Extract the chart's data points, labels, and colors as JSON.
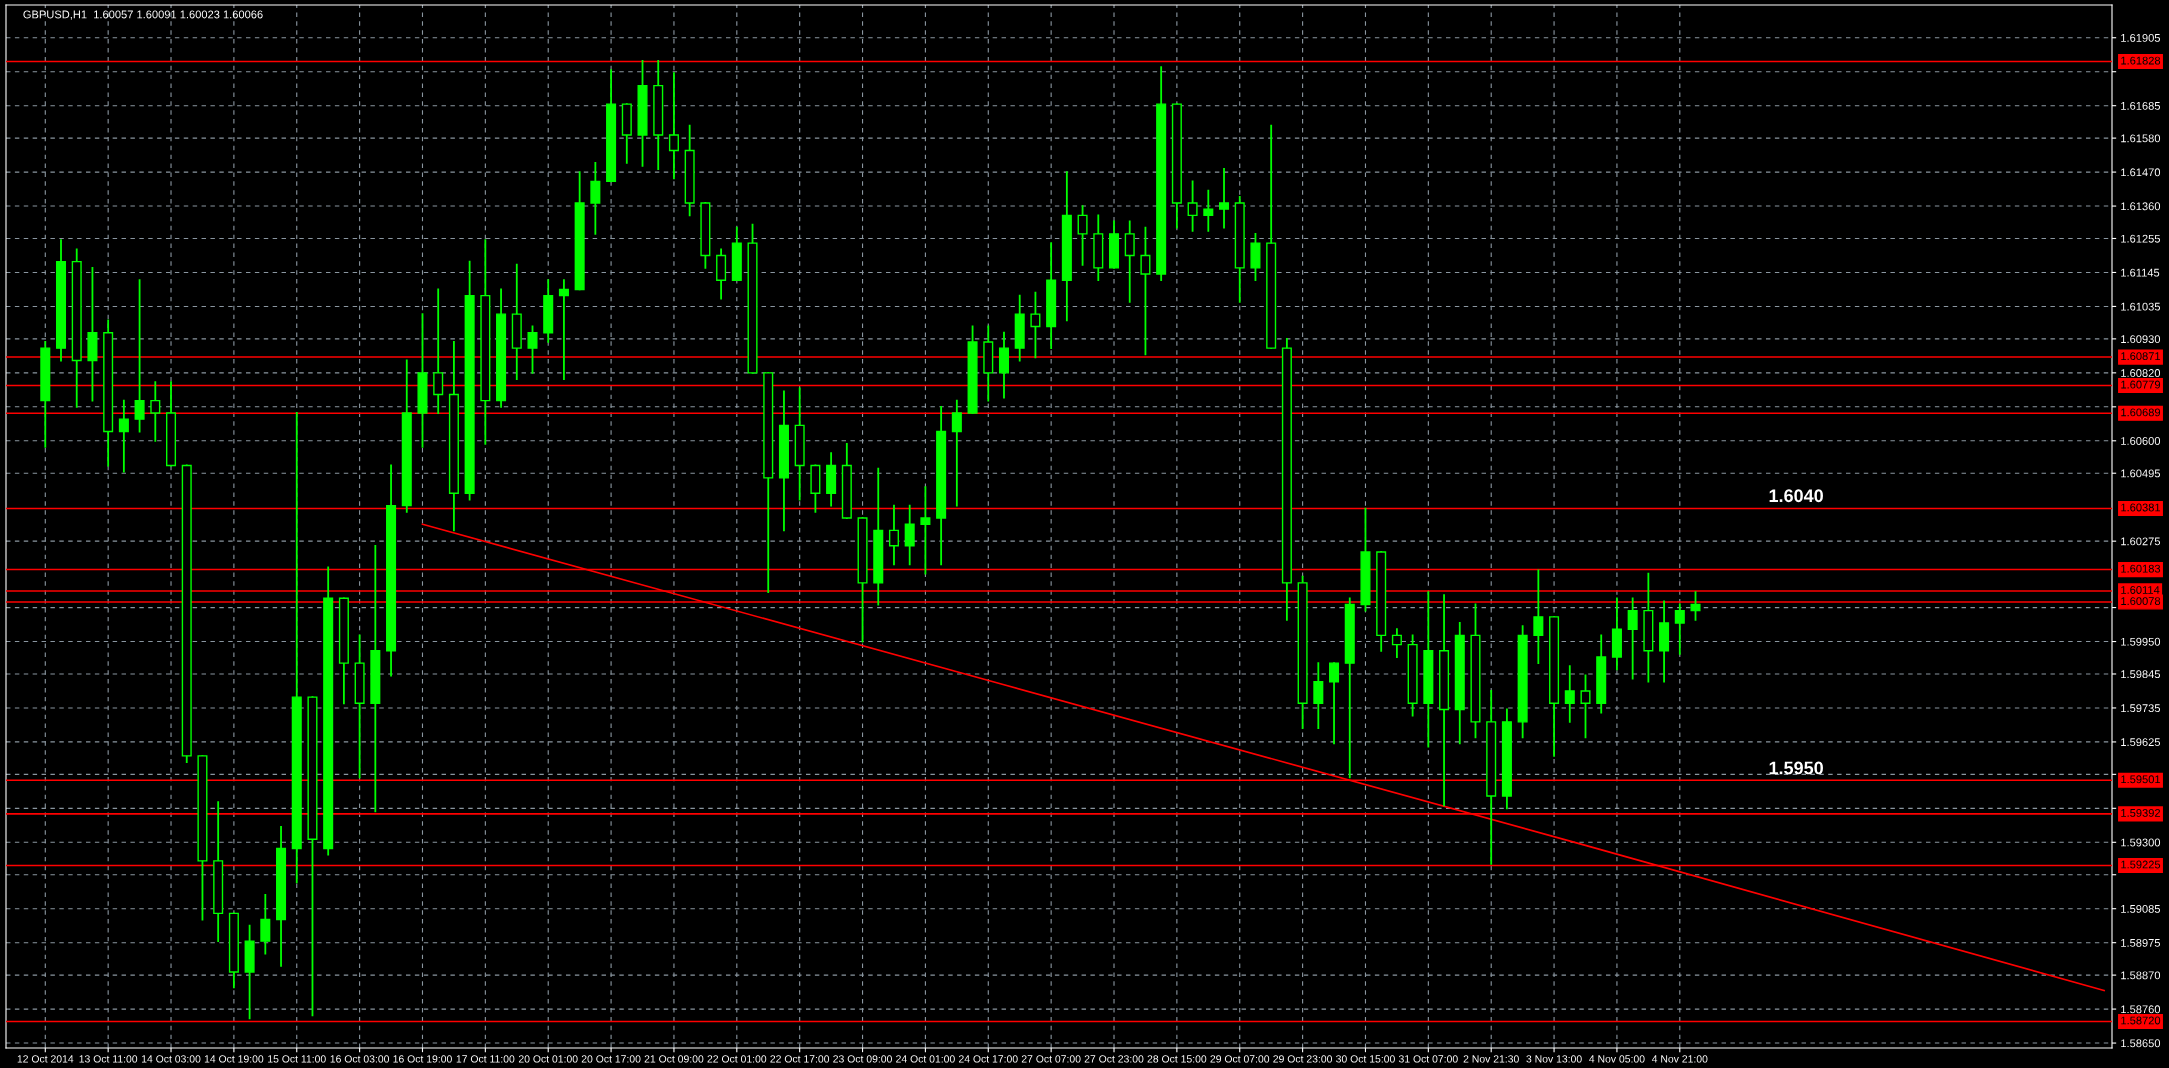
{
  "chart_data": {
    "type": "candlestick",
    "title": "GBPUSD,H1  1.60057 1.60091 1.60023 1.60066",
    "color": "#00ff00",
    "categories": [
      "12 Oct 2014",
      null,
      null,
      null,
      "13 Oct 11:00",
      null,
      null,
      null,
      "14 Oct 03:00",
      null,
      null,
      null,
      "14 Oct 19:00",
      null,
      null,
      null,
      "15 Oct 11:00",
      null,
      null,
      null,
      "16 Oct 03:00",
      null,
      null,
      null,
      "16 Oct 19:00",
      null,
      null,
      null,
      "17 Oct 11:00",
      null,
      null,
      null,
      "20 Oct 01:00",
      null,
      null,
      null,
      "20 Oct 17:00",
      null,
      null,
      null,
      "21 Oct 09:00",
      null,
      null,
      null,
      "22 Oct 01:00",
      null,
      null,
      null,
      "22 Oct 17:00",
      null,
      null,
      null,
      "23 Oct 09:00",
      null,
      null,
      null,
      "24 Oct 01:00",
      null,
      null,
      null,
      "24 Oct 17:00",
      null,
      null,
      null,
      "27 Oct 07:00",
      null,
      null,
      null,
      "27 Oct 23:00",
      null,
      null,
      null,
      "28 Oct 15:00",
      null,
      null,
      null,
      "29 Oct 07:00",
      null,
      null,
      null,
      "29 Oct 23:00",
      null,
      null,
      null,
      "30 Oct 15:00",
      null,
      null,
      null,
      "31 Oct 07:00",
      null,
      null,
      null,
      "2 Nov 21:30",
      null,
      null,
      null,
      "3 Nov 13:00",
      null,
      null,
      null,
      "4 Nov 05:00",
      null,
      null,
      null,
      "4 Nov 21:00",
      null,
      null,
      null,
      null,
      null,
      null,
      null,
      null,
      null,
      null,
      null,
      null,
      null,
      null,
      null,
      null,
      null,
      null,
      null,
      null,
      null,
      null,
      null,
      null,
      null,
      null,
      null
    ],
    "ohlc": [
      [
        1.6073,
        1.6092,
        1.6058,
        1.609
      ],
      [
        1.609,
        1.6125,
        1.6086,
        1.6118
      ],
      [
        1.6118,
        1.6122,
        1.6071,
        1.6086
      ],
      [
        1.6086,
        1.6116,
        1.6073,
        1.6095
      ],
      [
        1.6095,
        1.6099,
        1.6052,
        1.6063
      ],
      [
        1.6063,
        1.6073,
        1.605,
        1.6067
      ],
      [
        1.6067,
        1.6112,
        1.6063,
        1.6073
      ],
      [
        1.6073,
        1.6079,
        1.606,
        1.6069
      ],
      [
        1.6069,
        1.6079,
        1.6052,
        1.6052
      ],
      [
        1.6052,
        1.6052,
        1.5956,
        1.5958
      ],
      [
        1.5958,
        1.5958,
        1.5905,
        1.5924
      ],
      [
        1.5924,
        1.5943,
        1.5898,
        1.5907
      ],
      [
        1.5907,
        1.5907,
        1.5883,
        1.5888
      ],
      [
        1.5888,
        1.5903,
        1.5873,
        1.5898
      ],
      [
        1.5898,
        1.5913,
        1.5894,
        1.5905
      ],
      [
        1.5905,
        1.5935,
        1.589,
        1.5928
      ],
      [
        1.5928,
        1.6069,
        1.5917,
        1.5977
      ],
      [
        1.5977,
        1.5977,
        1.5874,
        1.5931
      ],
      [
        1.5928,
        1.6019,
        1.5926,
        1.6009
      ],
      [
        1.6009,
        1.6009,
        1.5975,
        1.5988
      ],
      [
        1.5988,
        1.5997,
        1.5951,
        1.5975
      ],
      [
        1.5975,
        1.6026,
        1.594,
        1.5992
      ],
      [
        1.5992,
        1.6052,
        1.5984,
        1.6039
      ],
      [
        1.6039,
        1.6086,
        1.6037,
        1.6069
      ],
      [
        1.6069,
        1.6101,
        1.6058,
        1.6082
      ],
      [
        1.6082,
        1.6109,
        1.6069,
        1.6075
      ],
      [
        1.6075,
        1.6092,
        1.6031,
        1.6043
      ],
      [
        1.6043,
        1.6118,
        1.6041,
        1.6107
      ],
      [
        1.6107,
        1.6125,
        1.6059,
        1.6073
      ],
      [
        1.6073,
        1.6109,
        1.6071,
        1.6101
      ],
      [
        1.6101,
        1.6117,
        1.608,
        1.609
      ],
      [
        1.609,
        1.6097,
        1.6082,
        1.6095
      ],
      [
        1.6095,
        1.6112,
        1.6092,
        1.6107
      ],
      [
        1.6107,
        1.6112,
        1.608,
        1.6109
      ],
      [
        1.6109,
        1.6147,
        1.6109,
        1.6137
      ],
      [
        1.6137,
        1.615,
        1.6127,
        1.6144
      ],
      [
        1.6144,
        1.618,
        1.6144,
        1.6169
      ],
      [
        1.6169,
        1.6169,
        1.615,
        1.6159
      ],
      [
        1.6159,
        1.6183,
        1.6149,
        1.6175
      ],
      [
        1.6175,
        1.6183,
        1.6148,
        1.6159
      ],
      [
        1.6159,
        1.6179,
        1.6145,
        1.6154
      ],
      [
        1.6154,
        1.6162,
        1.6133,
        1.6137
      ],
      [
        1.6137,
        1.6137,
        1.6116,
        1.612
      ],
      [
        1.612,
        1.6122,
        1.6106,
        1.6112
      ],
      [
        1.6112,
        1.6129,
        1.6112,
        1.6124
      ],
      [
        1.6124,
        1.613,
        1.6082,
        1.6082
      ],
      [
        1.6082,
        1.6082,
        1.6011,
        1.6048
      ],
      [
        1.6048,
        1.6076,
        1.6031,
        1.6065
      ],
      [
        1.6065,
        1.6077,
        1.6041,
        1.6052
      ],
      [
        1.6052,
        1.6052,
        1.6037,
        1.6043
      ],
      [
        1.6043,
        1.6056,
        1.6039,
        1.6052
      ],
      [
        1.6052,
        1.6059,
        1.6035,
        1.6035
      ],
      [
        1.6035,
        1.6035,
        1.5995,
        1.6014
      ],
      [
        1.6014,
        1.6051,
        1.6007,
        1.6031
      ],
      [
        1.6031,
        1.6039,
        1.602,
        1.6026
      ],
      [
        1.6026,
        1.6039,
        1.602,
        1.6033
      ],
      [
        1.6033,
        1.6045,
        1.6017,
        1.6035
      ],
      [
        1.6035,
        1.6071,
        1.602,
        1.6063
      ],
      [
        1.6063,
        1.6073,
        1.6039,
        1.6069
      ],
      [
        1.6069,
        1.6097,
        1.6069,
        1.6092
      ],
      [
        1.6092,
        1.6097,
        1.6073,
        1.6082
      ],
      [
        1.6082,
        1.6095,
        1.6074,
        1.609
      ],
      [
        1.609,
        1.6107,
        1.6086,
        1.6101
      ],
      [
        1.6101,
        1.6108,
        1.6087,
        1.6097
      ],
      [
        1.6097,
        1.6124,
        1.609,
        1.6112
      ],
      [
        1.6112,
        1.6147,
        1.6099,
        1.6133
      ],
      [
        1.6133,
        1.6136,
        1.6117,
        1.6127
      ],
      [
        1.6127,
        1.6133,
        1.6112,
        1.6116
      ],
      [
        1.6116,
        1.6131,
        1.6116,
        1.6127
      ],
      [
        1.6127,
        1.6131,
        1.6105,
        1.612
      ],
      [
        1.612,
        1.6129,
        1.6088,
        1.6114
      ],
      [
        1.6114,
        1.6181,
        1.6112,
        1.6169
      ],
      [
        1.6169,
        1.6169,
        1.6129,
        1.6137
      ],
      [
        1.6137,
        1.6144,
        1.6128,
        1.6133
      ],
      [
        1.6133,
        1.6141,
        1.6128,
        1.6135
      ],
      [
        1.6135,
        1.6148,
        1.6129,
        1.6137
      ],
      [
        1.6137,
        1.6139,
        1.6105,
        1.6116
      ],
      [
        1.6116,
        1.6127,
        1.6112,
        1.6124
      ],
      [
        1.6124,
        1.6162,
        1.609,
        1.609
      ],
      [
        1.609,
        1.6093,
        1.6002,
        1.6014
      ],
      [
        1.6014,
        1.6016,
        1.5967,
        1.5975
      ],
      [
        1.5975,
        1.5988,
        1.5967,
        1.5982
      ],
      [
        1.5982,
        1.5988,
        1.5962,
        1.5988
      ],
      [
        1.5988,
        1.6009,
        1.5951,
        1.6007
      ],
      [
        1.6007,
        1.6038,
        1.6005,
        1.6024
      ],
      [
        1.6024,
        1.6024,
        1.5992,
        1.5997
      ],
      [
        1.5997,
        1.5999,
        1.599,
        1.5994
      ],
      [
        1.5994,
        1.5997,
        1.5971,
        1.5975
      ],
      [
        1.5975,
        1.6011,
        1.5961,
        1.5992
      ],
      [
        1.5992,
        1.601,
        1.5942,
        1.5973
      ],
      [
        1.5973,
        1.6001,
        1.5962,
        1.5997
      ],
      [
        1.5997,
        1.6007,
        1.5964,
        1.5969
      ],
      [
        1.5969,
        1.5979,
        1.5923,
        1.5945
      ],
      [
        1.5945,
        1.5973,
        1.5941,
        1.5969
      ],
      [
        1.5969,
        1.6,
        1.5964,
        1.5997
      ],
      [
        1.5997,
        1.6018,
        1.5988,
        1.6003
      ],
      [
        1.6003,
        1.6003,
        1.5958,
        1.5975
      ],
      [
        1.5975,
        1.5987,
        1.5969,
        1.5979
      ],
      [
        1.5979,
        1.5984,
        1.5964,
        1.5975
      ],
      [
        1.5975,
        1.5997,
        1.5972,
        1.599
      ],
      [
        1.599,
        1.6009,
        1.5986,
        1.5999
      ],
      [
        1.5999,
        1.6009,
        1.5983,
        1.6005
      ],
      [
        1.6005,
        1.6017,
        1.5982,
        1.5992
      ],
      [
        1.5992,
        1.6008,
        1.5982,
        1.6001
      ],
      [
        1.6001,
        1.6007,
        1.5991,
        1.6005
      ],
      [
        1.6005,
        1.6011,
        1.6002,
        1.6007
      ],
      null,
      null,
      null,
      null,
      null,
      null,
      null,
      null,
      null,
      null,
      null,
      null,
      null,
      null,
      null,
      null,
      null,
      null,
      null,
      null,
      null,
      null,
      null,
      null,
      null,
      null
    ],
    "series": [
      {
        "type": "line",
        "color": "#ff0000",
        "values": [
          null,
          null,
          null,
          null,
          null,
          null,
          null,
          null,
          null,
          null,
          null,
          null,
          null,
          null,
          null,
          null,
          null,
          null,
          null,
          null,
          null,
          null,
          null,
          null,
          1.6033,
          null,
          null,
          null,
          null,
          null,
          null,
          null,
          null,
          null,
          null,
          null,
          null,
          null,
          null,
          null,
          null,
          null,
          null,
          null,
          null,
          null,
          null,
          null,
          null,
          null,
          null,
          null,
          null,
          null,
          null,
          null,
          null,
          null,
          null,
          null,
          null,
          1.5981,
          null,
          null,
          null,
          null,
          null,
          null,
          null,
          null,
          null,
          null,
          null,
          null,
          null,
          null,
          null,
          null,
          null,
          null,
          null,
          null,
          null,
          null,
          null,
          null,
          null,
          null,
          null,
          null,
          null,
          null,
          null,
          null,
          null,
          null,
          null,
          null,
          1.5929,
          null,
          null,
          null,
          null,
          null,
          null,
          null,
          null,
          null,
          null,
          null,
          null,
          null,
          null,
          null,
          null,
          null,
          null,
          null,
          null,
          null,
          null,
          null,
          null,
          null,
          null,
          null,
          null,
          null,
          null,
          null,
          null,
          1.5882
        ]
      }
    ],
    "ylim": [
      1.58634,
      1.62011
    ],
    "yticks": [
      1.61905,
      {
        "value": 1.61795,
        "label": null
      },
      1.61685,
      {
        "value": 1.6158,
        "label": "1.61580"
      },
      {
        "value": 1.6147,
        "label": "1.61470"
      },
      {
        "value": 1.6136,
        "label": "1.61360"
      },
      1.61255,
      1.61145,
      1.61035,
      {
        "value": 1.6093,
        "label": "1.60930"
      },
      {
        "value": 1.6082,
        "label": "1.60820"
      },
      {
        "value": 1.6071,
        "label": null
      },
      {
        "value": 1.606,
        "label": "1.60600"
      },
      1.60495,
      1.60275,
      {
        "value": 1.6006,
        "label": null
      },
      {
        "value": 1.5995,
        "label": "1.59950"
      },
      1.59845,
      1.59735,
      1.59625,
      {
        "value": 1.5952,
        "label": null
      },
      {
        "value": 1.5941,
        "label": null
      },
      {
        "value": 1.593,
        "label": "1.59300"
      },
      {
        "value": 1.59195,
        "label": null
      },
      1.59085,
      1.58975,
      {
        "value": 1.5887,
        "label": "1.58870"
      },
      {
        "value": 1.5876,
        "label": "1.58760"
      },
      {
        "value": 1.5865,
        "label": "1.58650"
      }
    ],
    "ref_lines": [
      {
        "axis": "y",
        "value": 1.61828,
        "label": "1.61828",
        "color": "#ff0000"
      },
      {
        "axis": "y",
        "value": 1.60871,
        "label": "1.60871",
        "color": "#ff0000"
      },
      {
        "axis": "y",
        "value": 1.60779,
        "label": "1.60779",
        "color": "#ff0000"
      },
      {
        "axis": "y",
        "value": 1.60689,
        "label": "1.60689",
        "color": "#ff0000"
      },
      {
        "axis": "y",
        "value": 1.60381,
        "label": "1.60381",
        "color": "#ff0000"
      },
      {
        "axis": "y",
        "value": 1.60183,
        "label": "1.60183",
        "color": "#ff0000"
      },
      {
        "axis": "y",
        "value": 1.60114,
        "label": "1.60114",
        "color": "#ff0000"
      },
      {
        "axis": "y",
        "value": 1.60078,
        "label": "1.60078",
        "color": "#ff0000"
      },
      {
        "axis": "y",
        "value": 1.59501,
        "label": "1.59501",
        "color": "#ff0000"
      },
      {
        "axis": "y",
        "value": 1.59392,
        "label": "1.59392",
        "color": "#ff0000"
      },
      {
        "axis": "y",
        "value": 1.59225,
        "label": "1.59225",
        "color": "#ff0000"
      },
      {
        "axis": "y",
        "value": 1.5872,
        "label": "1.58720",
        "color": "#ff0000"
      }
    ],
    "annotations": [
      "1.6040",
      "1.5950"
    ],
    "grid": true
  }
}
